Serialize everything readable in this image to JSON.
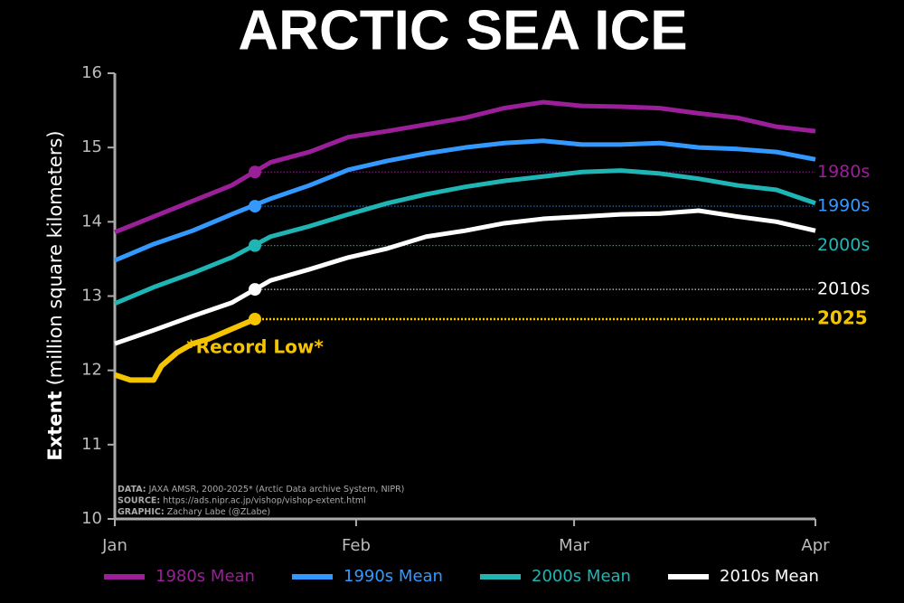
{
  "chart_data": {
    "type": "line",
    "title": "ARCTIC SEA ICE",
    "ylabel": {
      "bold": "Extent",
      "text": "(million square kilometers)"
    },
    "x": [
      0,
      5,
      10,
      15,
      20,
      25,
      30,
      35,
      40,
      45,
      50,
      55,
      60,
      65,
      70,
      75,
      80,
      85,
      90
    ],
    "xlim": [
      0,
      90
    ],
    "xticks": [
      {
        "value": 0,
        "label": "Jan"
      },
      {
        "value": 31,
        "label": "Feb"
      },
      {
        "value": 59,
        "label": "Mar"
      },
      {
        "value": 90,
        "label": "Apr"
      }
    ],
    "ylim": [
      10,
      16
    ],
    "yticks": [
      10,
      11,
      12,
      13,
      14,
      15,
      16
    ],
    "series": [
      {
        "name": "1980s Mean",
        "label": "1980s",
        "color": "#9a1f98",
        "values": [
          13.86,
          14.07,
          14.28,
          14.49,
          14.8,
          14.94,
          15.14,
          15.22,
          15.31,
          15.4,
          15.53,
          15.61,
          15.56,
          15.55,
          15.53,
          15.46,
          15.4,
          15.28,
          15.22
        ],
        "marker": {
          "x": 18,
          "value": 14.67
        }
      },
      {
        "name": "1990s Mean",
        "label": "1990s",
        "color": "#3399ff",
        "values": [
          13.48,
          13.7,
          13.88,
          14.1,
          14.31,
          14.49,
          14.7,
          14.82,
          14.92,
          15.0,
          15.06,
          15.09,
          15.04,
          15.04,
          15.06,
          15.0,
          14.98,
          14.94,
          14.84
        ],
        "marker": {
          "x": 18,
          "value": 14.21
        }
      },
      {
        "name": "2000s Mean",
        "label": "2000s",
        "color": "#1fb5b5",
        "values": [
          12.9,
          13.12,
          13.31,
          13.52,
          13.8,
          13.94,
          14.1,
          14.25,
          14.37,
          14.47,
          14.55,
          14.61,
          14.67,
          14.69,
          14.65,
          14.58,
          14.49,
          14.43,
          14.25
        ],
        "marker": {
          "x": 18,
          "value": 13.68
        }
      },
      {
        "name": "2010s Mean",
        "label": "2010s",
        "color": "#ffffff",
        "values": [
          12.36,
          12.54,
          12.73,
          12.91,
          13.21,
          13.36,
          13.52,
          13.64,
          13.8,
          13.88,
          13.98,
          14.04,
          14.07,
          14.1,
          14.11,
          14.15,
          14.07,
          14.0,
          13.88
        ],
        "marker": {
          "x": 18,
          "value": 13.09
        }
      }
    ],
    "current": {
      "label": "2025",
      "color": "#f5c400",
      "x": [
        0,
        2,
        5,
        6,
        8,
        10,
        12,
        14,
        16,
        18
      ],
      "values": [
        11.94,
        11.87,
        11.87,
        12.06,
        12.24,
        12.36,
        12.42,
        12.51,
        12.6,
        12.69
      ],
      "annotation": "*Record Low*"
    },
    "notes": [
      {
        "label": "DATA:",
        "text": "JAXA AMSR, 2000-2025* (Arctic Data archive System, NIPR)"
      },
      {
        "label": "SOURCE:",
        "text": "https://ads.nipr.ac.jp/vishop/vishop-extent.html"
      },
      {
        "label": "GRAPHIC:",
        "text": "Zachary Labe (@ZLabe)"
      }
    ]
  }
}
